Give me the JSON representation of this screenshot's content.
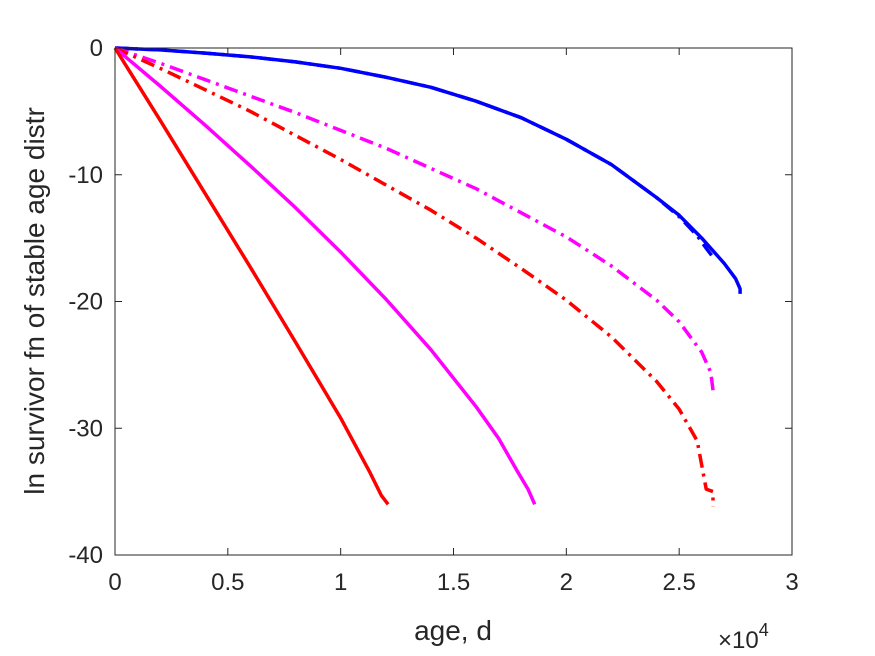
{
  "chart_data": {
    "type": "line",
    "title": "",
    "xlabel": "age, d",
    "ylabel": "ln survivor fn of stable age distr",
    "x_multiplier_label": {
      "base": "×10",
      "exponent": "4"
    },
    "xlim": [
      0,
      30000
    ],
    "ylim": [
      -40,
      0
    ],
    "xticks": [
      0,
      5000,
      10000,
      15000,
      20000,
      25000,
      30000
    ],
    "xtick_labels": [
      "0",
      "0.5",
      "1",
      "1.5",
      "2",
      "2.5",
      "3"
    ],
    "yticks": [
      -40,
      -30,
      -20,
      -10,
      0
    ],
    "ytick_labels": [
      "-40",
      "-30",
      "-20",
      "-10",
      "0"
    ],
    "grid": false,
    "legend": "none",
    "series": [
      {
        "color": "#0000ff",
        "style": "solid",
        "x": [
          0,
          2000,
          4000,
          6000,
          8000,
          10000,
          12000,
          14000,
          16000,
          18000,
          20000,
          22000,
          24000,
          25000,
          26000,
          27000,
          27500,
          27700,
          27700
        ],
        "y": [
          0,
          -0.15,
          -0.4,
          -0.7,
          -1.1,
          -1.6,
          -2.3,
          -3.1,
          -4.2,
          -5.5,
          -7.2,
          -9.2,
          -11.8,
          -13.2,
          -15.0,
          -17.0,
          -18.2,
          -19.0,
          -19.4
        ]
      },
      {
        "color": "#0000ff",
        "style": "dashdot",
        "x": [
          0,
          2000,
          4000,
          6000,
          8000,
          10000,
          12000,
          14000,
          16000,
          18000,
          20000,
          22000,
          24000,
          25000,
          25800,
          26200,
          26500
        ],
        "y": [
          0,
          -0.15,
          -0.4,
          -0.7,
          -1.1,
          -1.6,
          -2.3,
          -3.1,
          -4.2,
          -5.5,
          -7.2,
          -9.2,
          -11.8,
          -13.3,
          -14.8,
          -15.8,
          -16.5
        ]
      },
      {
        "color": "#ff00ff",
        "style": "dashdot",
        "x": [
          0,
          1000,
          2000,
          4000,
          6000,
          8000,
          10000,
          12000,
          14000,
          16000,
          18000,
          20000,
          22000,
          24000,
          25000,
          26000,
          26400,
          26500
        ],
        "y": [
          0,
          -0.6,
          -1.2,
          -2.5,
          -3.8,
          -5.1,
          -6.5,
          -7.9,
          -9.5,
          -11.1,
          -13.0,
          -14.9,
          -17.2,
          -19.9,
          -21.6,
          -24.0,
          -25.6,
          -27.0
        ]
      },
      {
        "color": "#ff0000",
        "style": "dashdot",
        "x": [
          0,
          1000,
          2000,
          4000,
          6000,
          8000,
          10000,
          12000,
          14000,
          16000,
          18000,
          20000,
          22000,
          24000,
          25000,
          25800,
          26200,
          26500,
          26500
        ],
        "y": [
          0,
          -0.8,
          -1.6,
          -3.3,
          -5.0,
          -6.9,
          -8.8,
          -10.8,
          -12.8,
          -15.0,
          -17.4,
          -19.9,
          -22.8,
          -26.3,
          -28.5,
          -31.0,
          -34.8,
          -35.0,
          -36.2
        ]
      },
      {
        "color": "#ff00ff",
        "style": "solid",
        "x": [
          0,
          2000,
          4000,
          6000,
          8000,
          10000,
          12000,
          14000,
          16000,
          17000,
          17800,
          18300,
          18600
        ],
        "y": [
          0,
          -3.0,
          -6.1,
          -9.3,
          -12.6,
          -16.1,
          -19.8,
          -23.8,
          -28.3,
          -30.8,
          -33.3,
          -34.8,
          -36.0
        ]
      },
      {
        "color": "#ff0000",
        "style": "solid",
        "x": [
          0,
          2000,
          4000,
          6000,
          8000,
          10000,
          11300,
          11800,
          12100
        ],
        "y": [
          0,
          -5.7,
          -11.5,
          -17.3,
          -23.2,
          -29.2,
          -33.5,
          -35.3,
          -36.0
        ]
      }
    ]
  }
}
